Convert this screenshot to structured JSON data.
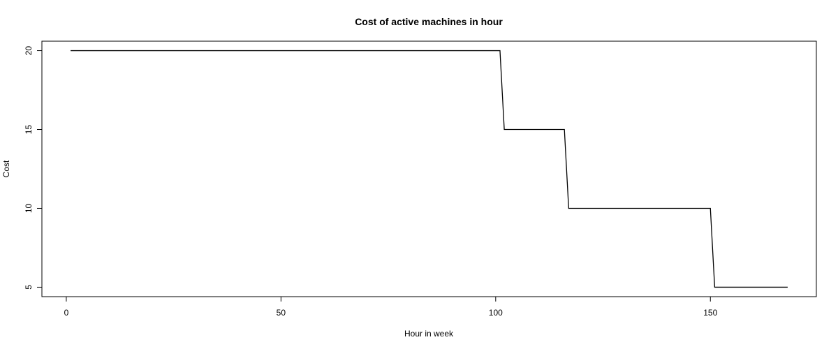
{
  "chart_data": {
    "type": "line",
    "title": "Cost of active machines in hour",
    "xlabel": "Hour in week",
    "ylabel": "Cost",
    "xlim": [
      1,
      168
    ],
    "ylim": [
      5,
      20
    ],
    "x_ticks": [
      0,
      50,
      100,
      150
    ],
    "x_tick_labels": [
      "0",
      "50",
      "100",
      "150"
    ],
    "y_ticks": [
      5,
      10,
      15,
      20
    ],
    "y_tick_labels": [
      "5",
      "10",
      "15",
      "20"
    ],
    "grid": false,
    "series": [
      {
        "x": [
          1,
          101,
          102,
          116,
          117,
          150,
          151,
          168
        ],
        "y": [
          20,
          20,
          15,
          15,
          10,
          10,
          5,
          5
        ]
      }
    ],
    "line_color": "#000000"
  }
}
